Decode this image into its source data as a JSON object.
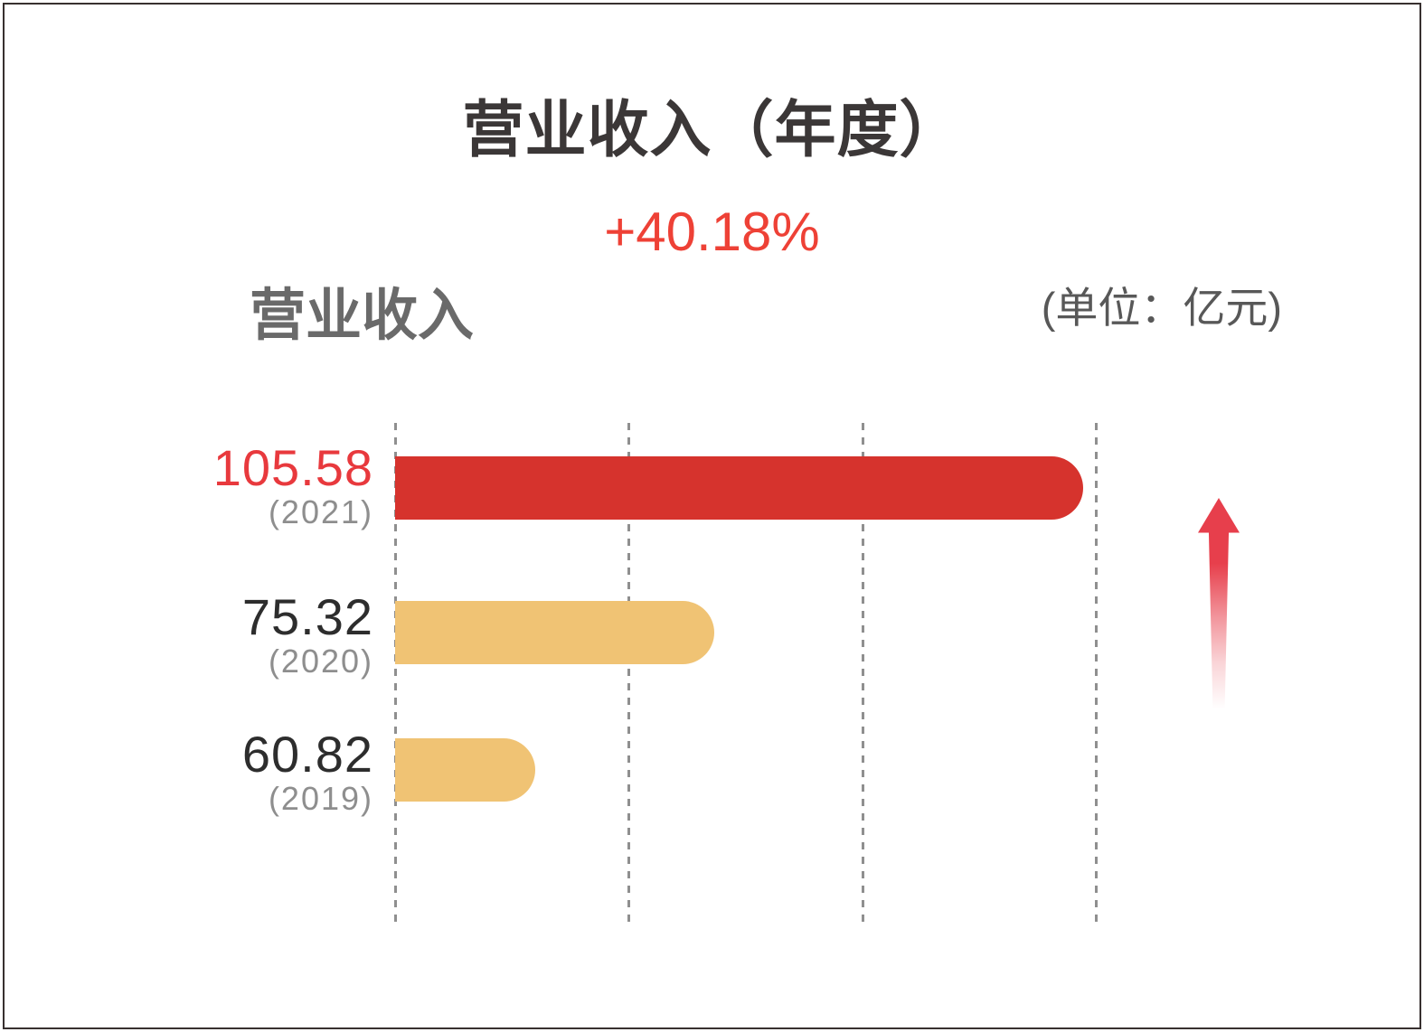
{
  "page": {
    "title": "营业收入（年度）",
    "growth_label": "+40.18%",
    "series_label": "营业收入",
    "unit_label": "(单位：亿元)"
  },
  "chart_data": {
    "type": "bar",
    "orientation": "horizontal",
    "title": "营业收入（年度）",
    "series_label": "营业收入",
    "unit": "亿元",
    "unit_label": "(单位：亿元)",
    "annotation": "+40.18%",
    "categories": [
      "2021",
      "2020",
      "2019"
    ],
    "values": [
      105.58,
      75.32,
      60.82
    ],
    "bar_colors": [
      "#d6332d",
      "#f0c374",
      "#f0c374"
    ],
    "value_label_colors": [
      "#e8393d",
      "#2d2d2d",
      "#2d2d2d"
    ],
    "gridlines": "vertical-dashed",
    "gridline_color": "#8f8f8f",
    "legend_position": "none",
    "bar_end_style": "rounded-right",
    "trend_icon": "up-arrow"
  },
  "rows": [
    {
      "value": "105.58",
      "year": "(2021)",
      "value_style": "color:#e8393d",
      "bar_style": "top:505px;width:761px;background:#d6332d"
    },
    {
      "value": "75.32",
      "year": "(2020)",
      "value_style": "color:#2d2d2d",
      "bar_style": "top:665px;width:353px;background:#f0c374"
    },
    {
      "value": "60.82",
      "year": "(2019)",
      "value_style": "color:#2d2d2d",
      "bar_style": "top:817px;width:155px;background:#f0c374"
    }
  ],
  "colors": {
    "bar_red": "#d6332d",
    "bar_tan": "#f0c374",
    "growth_red": "#ee4136",
    "value_red": "#e8393d",
    "title_dark": "#3b3737",
    "label_gray": "#6a6a6a",
    "year_gray": "#8e8e8e",
    "border_dark": "#37302f",
    "arrow_red": "#e73f4c"
  }
}
